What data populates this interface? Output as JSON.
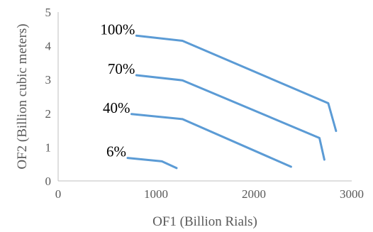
{
  "chart_data": {
    "type": "line",
    "xlabel": "OF1 (Billion Rials)",
    "ylabel": "OF2 (Billion cubic meters)",
    "xlim": [
      0,
      3000
    ],
    "ylim": [
      0,
      5
    ],
    "x_ticks": [
      "0",
      "1000",
      "2000",
      "3000"
    ],
    "y_ticks": [
      "0",
      "1",
      "2",
      "3",
      "4",
      "5"
    ],
    "grid": false,
    "legend": "none",
    "line_color": "#5b9bd5",
    "series": [
      {
        "name": "100%",
        "points": [
          [
            800,
            4.3
          ],
          [
            1270,
            4.15
          ],
          [
            2760,
            2.3
          ],
          [
            2840,
            1.48
          ]
        ]
      },
      {
        "name": "70%",
        "points": [
          [
            800,
            3.13
          ],
          [
            1270,
            2.98
          ],
          [
            2670,
            1.27
          ],
          [
            2720,
            0.63
          ]
        ]
      },
      {
        "name": "40%",
        "points": [
          [
            750,
            1.98
          ],
          [
            1270,
            1.83
          ],
          [
            2380,
            0.42
          ]
        ]
      },
      {
        "name": "6%",
        "points": [
          [
            710,
            0.68
          ],
          [
            1060,
            0.58
          ],
          [
            1210,
            0.38
          ]
        ]
      }
    ]
  }
}
